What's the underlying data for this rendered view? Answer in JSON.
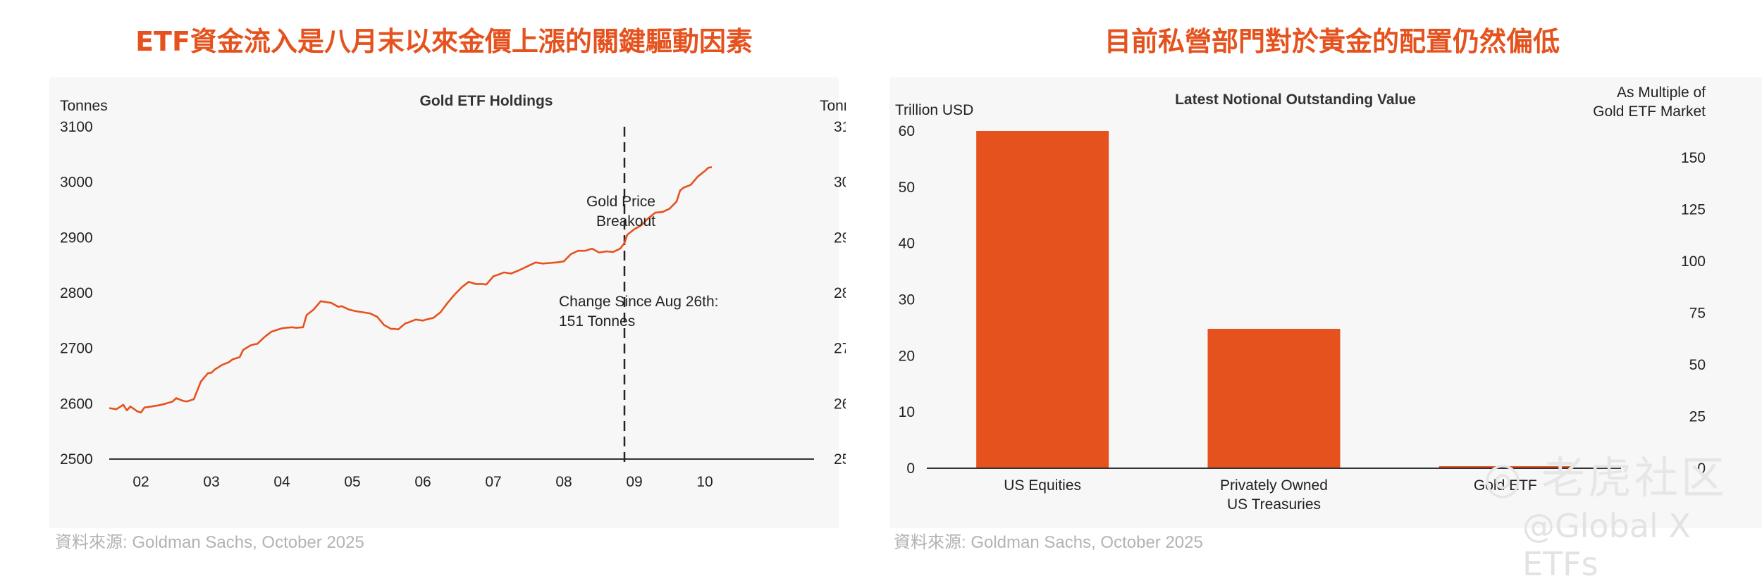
{
  "left": {
    "heading": "ETF資金流入是八月末以來金價上漲的關鍵驅動因素",
    "source": "資料來源: Goldman Sachs, October 2025",
    "chart_data": {
      "type": "line",
      "title": "Gold ETF Holdings",
      "ylabel_left": "Tonnes",
      "ylabel_right": "Tonnes",
      "ylim": [
        2500,
        3100
      ],
      "y_ticks": [
        "2500",
        "2600",
        "2700",
        "2800",
        "2900",
        "3000",
        "3100"
      ],
      "x_tick_labels": [
        "02",
        "03",
        "04",
        "05",
        "06",
        "07",
        "08",
        "09",
        "10"
      ],
      "x_tick_months": [
        2,
        3,
        4,
        5,
        6,
        7,
        8,
        9,
        10
      ],
      "xlim": [
        1.55,
        11.55
      ],
      "series": [
        {
          "name": "Gold ETF Holdings",
          "color": "#e5521e",
          "x": [
            1.55,
            1.65,
            1.75,
            1.8,
            1.85,
            1.95,
            2.0,
            2.05,
            2.15,
            2.25,
            2.35,
            2.45,
            2.5,
            2.6,
            2.65,
            2.75,
            2.85,
            2.95,
            3.0,
            3.05,
            3.15,
            3.25,
            3.3,
            3.4,
            3.45,
            3.55,
            3.6,
            3.65,
            3.75,
            3.85,
            3.9,
            4.0,
            4.05,
            4.15,
            4.2,
            4.3,
            4.35,
            4.45,
            4.55,
            4.65,
            4.7,
            4.8,
            4.85,
            4.95,
            5.05,
            5.15,
            5.25,
            5.35,
            5.45,
            5.55,
            5.6,
            5.65,
            5.75,
            5.8,
            5.9,
            6.0,
            6.05,
            6.15,
            6.25,
            6.35,
            6.45,
            6.55,
            6.65,
            6.75,
            6.85,
            6.9,
            7.0,
            7.05,
            7.15,
            7.25,
            7.35,
            7.45,
            7.55,
            7.6,
            7.7,
            7.8,
            7.9,
            8.0,
            8.1,
            8.2,
            8.3,
            8.4,
            8.5,
            8.6,
            8.7,
            8.8,
            8.86,
            8.9,
            9.0,
            9.1,
            9.2,
            9.3,
            9.4,
            9.5,
            9.6,
            9.65,
            9.7,
            9.8,
            9.9,
            10.0,
            10.05,
            10.1
          ],
          "values": [
            2592,
            2590,
            2598,
            2588,
            2595,
            2586,
            2584,
            2593,
            2595,
            2597,
            2600,
            2604,
            2610,
            2605,
            2604,
            2608,
            2640,
            2655,
            2656,
            2662,
            2670,
            2675,
            2680,
            2684,
            2697,
            2705,
            2707,
            2708,
            2720,
            2730,
            2732,
            2736,
            2737,
            2738,
            2737,
            2738,
            2760,
            2770,
            2785,
            2783,
            2782,
            2775,
            2776,
            2770,
            2767,
            2765,
            2763,
            2757,
            2742,
            2735,
            2735,
            2734,
            2745,
            2747,
            2752,
            2750,
            2752,
            2755,
            2765,
            2782,
            2797,
            2810,
            2820,
            2816,
            2816,
            2815,
            2830,
            2832,
            2837,
            2835,
            2840,
            2846,
            2852,
            2855,
            2853,
            2854,
            2855,
            2857,
            2870,
            2876,
            2876,
            2880,
            2873,
            2875,
            2874,
            2880,
            2890,
            2905,
            2915,
            2922,
            2935,
            2945,
            2946,
            2952,
            2965,
            2985,
            2990,
            2995,
            3010,
            3020,
            3026,
            3027
          ]
        }
      ],
      "annotations": [
        {
          "text_lines": [
            "Gold Price",
            "Breakout"
          ],
          "x": 8.86
        },
        {
          "text_lines": [
            "Change Since Aug 26th:",
            "151 Tonnes"
          ]
        }
      ],
      "breakout_x": 8.86
    }
  },
  "right": {
    "heading": "目前私營部門對於黃金的配置仍然偏低",
    "source": "資料來源: Goldman Sachs, October 2025",
    "chart_data": {
      "type": "bar",
      "title": "Latest Notional Outstanding Value",
      "ylabel_left": "Trillion USD",
      "ylabel_right_lines": [
        "As Multiple of",
        "Gold ETF Market"
      ],
      "ylim": [
        0,
        60
      ],
      "y_ticks": [
        "0",
        "10",
        "20",
        "30",
        "40",
        "50",
        "60"
      ],
      "ylim_right": [
        0,
        163
      ],
      "y_ticks_right": [
        "0",
        "25",
        "50",
        "75",
        "100",
        "125",
        "150"
      ],
      "categories": [
        {
          "lines": [
            "US Equities"
          ]
        },
        {
          "lines": [
            "Privately Owned",
            "US Treasuries"
          ]
        },
        {
          "lines": [
            "Gold ETF"
          ]
        }
      ],
      "values": [
        60,
        24.8,
        0.37
      ],
      "color": "#e5521e"
    }
  },
  "watermark": {
    "logo": "老虎社区",
    "handle": "@Global X ETFs"
  }
}
